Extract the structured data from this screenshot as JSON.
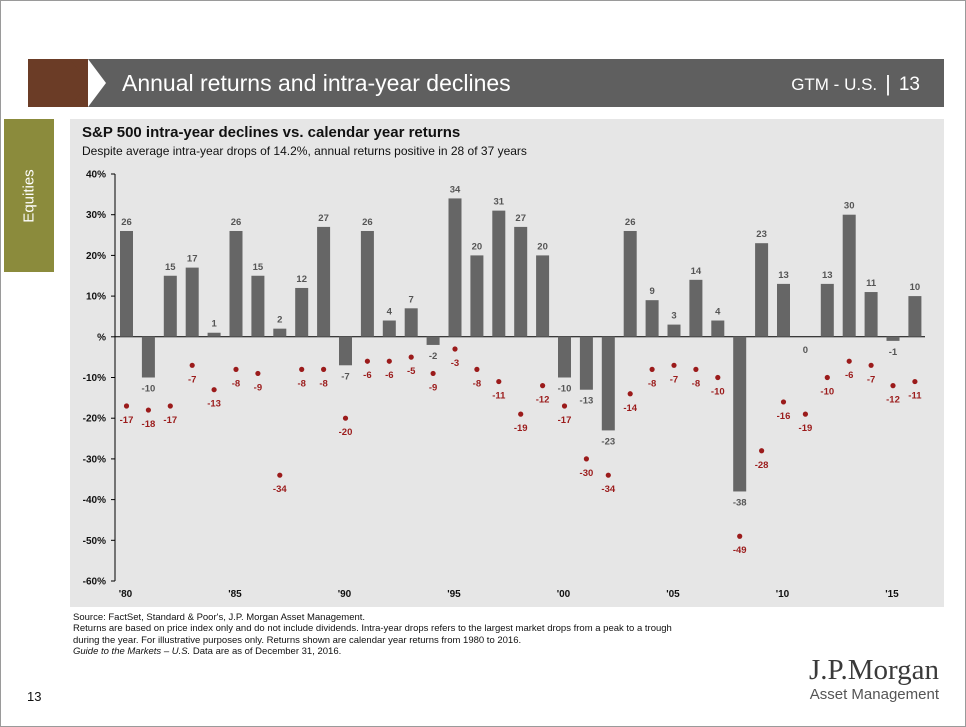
{
  "header": {
    "title": "Annual returns and intra-year declines",
    "section": "GTM - U.S.",
    "separator": "|",
    "slide_number": "13"
  },
  "side_tab": {
    "label": "Equities"
  },
  "chart_data": {
    "type": "bar",
    "title": "S&P 500 intra-year declines vs. calendar year returns",
    "subtitle": "Despite average intra-year drops of 14.2%, annual returns positive in 28 of 37 years",
    "years": [
      1980,
      1981,
      1982,
      1983,
      1984,
      1985,
      1986,
      1987,
      1988,
      1989,
      1990,
      1991,
      1992,
      1993,
      1994,
      1995,
      1996,
      1997,
      1998,
      1999,
      2000,
      2001,
      2002,
      2003,
      2004,
      2005,
      2006,
      2007,
      2008,
      2009,
      2010,
      2011,
      2012,
      2013,
      2014,
      2015,
      2016
    ],
    "series": [
      {
        "name": "",
        "kind": "bar",
        "color": "#666666",
        "values": [
          26,
          -10,
          15,
          17,
          1,
          26,
          15,
          2,
          12,
          27,
          -7,
          26,
          4,
          7,
          -2,
          34,
          20,
          31,
          27,
          20,
          -10,
          -13,
          -23,
          26,
          9,
          3,
          14,
          4,
          -38,
          23,
          13,
          0,
          13,
          30,
          11,
          -1,
          10
        ]
      },
      {
        "name": "",
        "kind": "point",
        "color": "#9b1b1b",
        "values": [
          -17,
          -18,
          -17,
          -7,
          -13,
          -8,
          -9,
          -34,
          -8,
          -8,
          -20,
          -6,
          -6,
          -5,
          -9,
          -3,
          -8,
          -11,
          -19,
          -12,
          -17,
          -30,
          -34,
          -14,
          -8,
          -7,
          -8,
          -10,
          -49,
          -28,
          -16,
          -19,
          -10,
          -6,
          -7,
          -12,
          -11
        ]
      }
    ],
    "y_ticks": [
      "40%",
      "30%",
      "20%",
      "10%",
      "%",
      "-10%",
      "-20%",
      "-30%",
      "-40%",
      "-50%",
      "-60%"
    ],
    "ylim": [
      -60,
      40
    ],
    "x_ticks": [
      "'80",
      "'85",
      "'90",
      "'95",
      "'00",
      "'05",
      "'10",
      "'15"
    ],
    "grid": false
  },
  "footer": {
    "source": "Source: FactSet, Standard & Poor's, J.P. Morgan Asset Management.",
    "note1": "Returns are based on price index only and do not include dividends. Intra-year drops refers to the largest market drops from a peak to a trough",
    "note2": "during the year. For illustrative purposes only. Returns shown are calendar year returns from 1980 to 2016.",
    "guide_italic": "Guide to the Markets – U.S.",
    "guide_rest": " Data are as of December 31, 2016."
  },
  "page_number": "13",
  "logo": {
    "brand": "J.P.Morgan",
    "sub": "Asset Management"
  }
}
